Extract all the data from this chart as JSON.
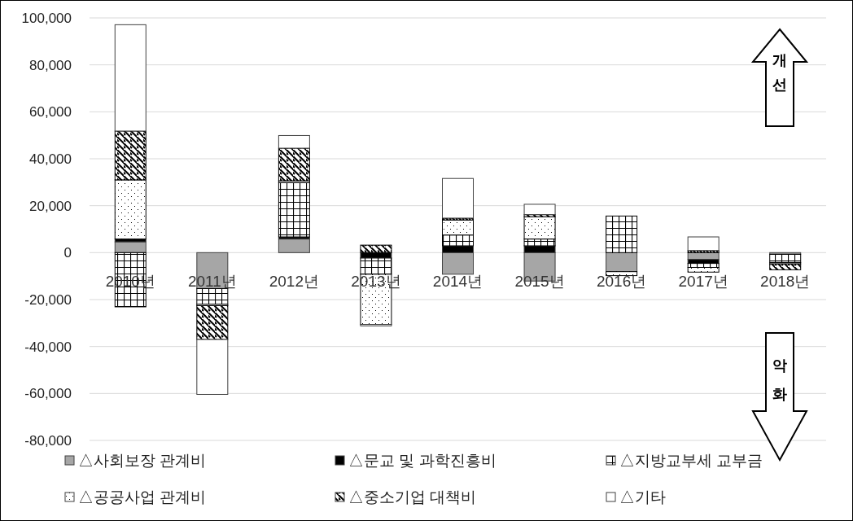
{
  "chart_data": {
    "type": "bar",
    "stacked": true,
    "categories": [
      "2010년",
      "2011년",
      "2012년",
      "2013년",
      "2014년",
      "2015년",
      "2016년",
      "2017년",
      "2018년"
    ],
    "series": [
      {
        "name": "△사회보장 관계비",
        "color": "#a6a6a6",
        "values": [
          4600,
          -15300,
          5800,
          0,
          -9200,
          -12100,
          -8100,
          -2900,
          -700
        ]
      },
      {
        "name": "△문교 및 과학진흥비",
        "color": "#000000",
        "values": [
          1200,
          0,
          900,
          -2300,
          2900,
          2900,
          0,
          -1700,
          0
        ]
      },
      {
        "name": "△지방교부세 교부금",
        "color": "#000000",
        "values": [
          -23100,
          -6700,
          23100,
          -6900,
          4600,
          2900,
          15600,
          -1700,
          -3500
        ]
      },
      {
        "name": "△공공사업 관계비",
        "color": "#000000",
        "values": [
          25200,
          -600,
          800,
          -21400,
          6400,
          9500,
          -1700,
          -2000,
          -600
        ]
      },
      {
        "name": "△중소기업 대책비",
        "color": "#000000",
        "values": [
          20800,
          -14400,
          13900,
          3200,
          800,
          900,
          0,
          900,
          -2500
        ]
      },
      {
        "name": "△기타",
        "color": "#ffffff",
        "values": [
          45300,
          -23400,
          5400,
          -600,
          16900,
          4400,
          0,
          5800,
          0
        ]
      }
    ],
    "ylim": [
      -80000,
      100000
    ],
    "yticks": [
      {
        "value": -80000,
        "label": "-80,000"
      },
      {
        "value": -60000,
        "label": "-60,000"
      },
      {
        "value": -40000,
        "label": "-40,000"
      },
      {
        "value": -20000,
        "label": "-20,000"
      },
      0,
      {
        "value": 20000,
        "label": "20,000"
      },
      {
        "value": 40000,
        "label": "40,000"
      },
      {
        "value": 60000,
        "label": "60,000"
      },
      {
        "value": 80000,
        "label": "80,000"
      },
      {
        "value": 100000,
        "label": "100,000"
      }
    ],
    "grid": "y",
    "legend": "bottom",
    "annotations": [
      "개선",
      "악화"
    ]
  }
}
